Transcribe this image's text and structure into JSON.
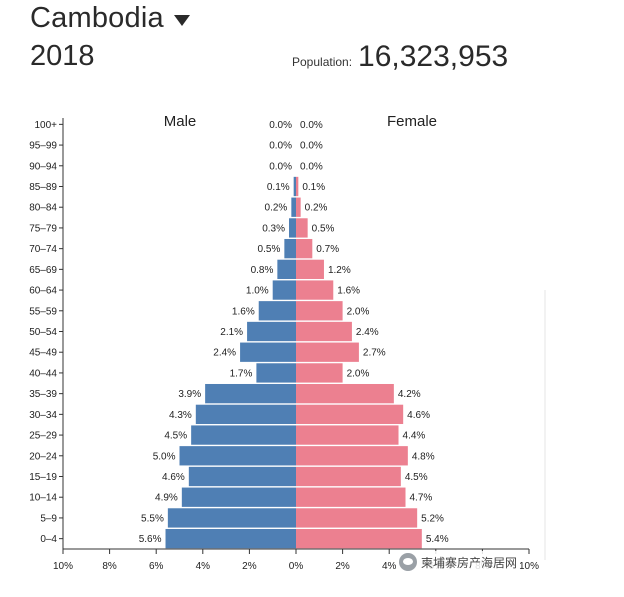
{
  "header": {
    "country": "Cambodia",
    "year": "2018",
    "population_label": "Population:",
    "population_value": "16,323,953"
  },
  "watermark": {
    "text": "柬埔寨房产海居网"
  },
  "colors": {
    "male": "#4f7fb4",
    "female": "#ec8090"
  },
  "chart_data": {
    "type": "bar",
    "orientation": "horizontal-diverging",
    "categories": [
      "100+",
      "95–99",
      "90–94",
      "85–89",
      "80–84",
      "75–79",
      "70–74",
      "65–69",
      "60–64",
      "55–59",
      "50–54",
      "45–49",
      "40–44",
      "35–39",
      "30–34",
      "25–29",
      "20–24",
      "15–19",
      "10–14",
      "5–9",
      "0–4"
    ],
    "series": [
      {
        "name": "Male",
        "values": [
          0.0,
          0.0,
          0.0,
          0.1,
          0.2,
          0.3,
          0.5,
          0.8,
          1.0,
          1.6,
          2.1,
          2.4,
          1.7,
          3.9,
          4.3,
          4.5,
          5.0,
          4.6,
          4.9,
          5.5,
          5.6
        ],
        "labels": [
          "0.0%",
          "0.0%",
          "0.0%",
          "0.1%",
          "0.2%",
          "0.3%",
          "0.5%",
          "0.8%",
          "1.0%",
          "1.6%",
          "2.1%",
          "2.4%",
          "1.7%",
          "3.9%",
          "4.3%",
          "4.5%",
          "5.0%",
          "4.6%",
          "4.9%",
          "5.5%",
          "5.6%"
        ]
      },
      {
        "name": "Female",
        "values": [
          0.0,
          0.0,
          0.0,
          0.1,
          0.2,
          0.5,
          0.7,
          1.2,
          1.6,
          2.0,
          2.4,
          2.7,
          2.0,
          4.2,
          4.6,
          4.4,
          4.8,
          4.5,
          4.7,
          5.2,
          5.4
        ],
        "labels": [
          "0.0%",
          "0.0%",
          "0.0%",
          "0.1%",
          "0.2%",
          "0.5%",
          "0.7%",
          "1.2%",
          "1.6%",
          "2.0%",
          "2.4%",
          "2.7%",
          "2.0%",
          "4.2%",
          "4.6%",
          "4.4%",
          "4.8%",
          "4.5%",
          "4.7%",
          "5.2%",
          "5.4%"
        ]
      }
    ],
    "x_ticks": [
      "10%",
      "8%",
      "6%",
      "4%",
      "2%",
      "0%",
      "2%",
      "4%",
      "6%",
      "8%",
      "10%"
    ],
    "xlim": [
      -10,
      10
    ],
    "grid": false
  }
}
